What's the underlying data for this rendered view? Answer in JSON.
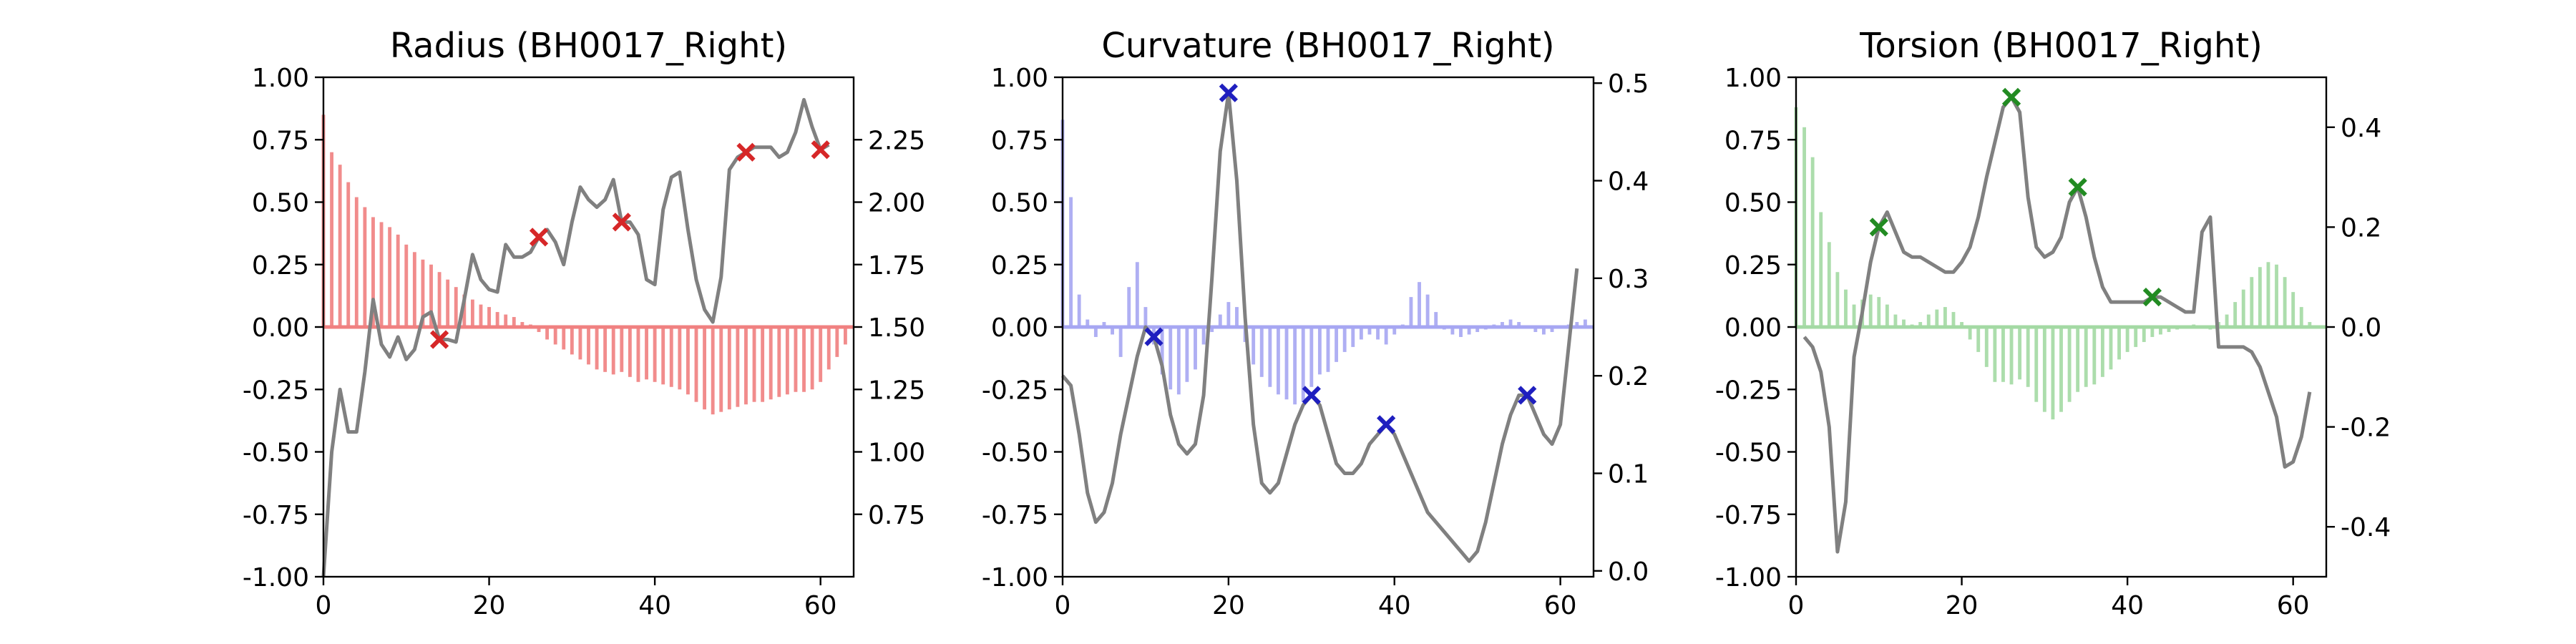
{
  "chart_data": [
    {
      "type": "bar",
      "title": "Radius (BH0017_Right)",
      "xlabel": "",
      "ylabel": "",
      "xlim": [
        0,
        64
      ],
      "ylim": [
        -1.0,
        1.0
      ],
      "y2lim": [
        0.5,
        2.5
      ],
      "x_ticks": [
        0,
        20,
        40,
        60
      ],
      "y_ticks": [
        "1.00",
        "0.75",
        "0.50",
        "0.25",
        "0.00",
        "-0.25",
        "-0.50",
        "-0.75",
        "-1.00"
      ],
      "y2_ticks": [
        "2.25",
        "2.00",
        "1.75",
        "1.50",
        "1.25",
        "1.00",
        "0.75"
      ],
      "bar_color": "#f08080",
      "marker_color": "#d62728",
      "bars": [
        0.85,
        0.7,
        0.65,
        0.58,
        0.52,
        0.48,
        0.44,
        0.42,
        0.4,
        0.37,
        0.33,
        0.3,
        0.27,
        0.25,
        0.22,
        0.19,
        0.16,
        0.13,
        0.11,
        0.09,
        0.08,
        0.06,
        0.05,
        0.04,
        0.02,
        0.01,
        -0.02,
        -0.05,
        -0.07,
        -0.09,
        -0.11,
        -0.13,
        -0.15,
        -0.17,
        -0.18,
        -0.19,
        -0.18,
        -0.2,
        -0.22,
        -0.21,
        -0.22,
        -0.23,
        -0.24,
        -0.25,
        -0.27,
        -0.3,
        -0.33,
        -0.35,
        -0.34,
        -0.33,
        -0.32,
        -0.31,
        -0.3,
        -0.3,
        -0.29,
        -0.28,
        -0.27,
        -0.26,
        -0.26,
        -0.25,
        -0.22,
        -0.17,
        -0.12,
        -0.07
      ],
      "line": [
        0.5,
        1.0,
        1.25,
        1.08,
        1.08,
        1.32,
        1.61,
        1.43,
        1.38,
        1.46,
        1.37,
        1.41,
        1.54,
        1.56,
        1.45,
        1.45,
        1.44,
        1.61,
        1.79,
        1.69,
        1.65,
        1.64,
        1.83,
        1.78,
        1.78,
        1.8,
        1.86,
        1.89,
        1.84,
        1.75,
        1.92,
        2.06,
        2.01,
        1.98,
        2.01,
        2.09,
        1.92,
        1.92,
        1.87,
        1.69,
        1.67,
        1.97,
        2.1,
        2.12,
        1.89,
        1.69,
        1.57,
        1.52,
        1.7,
        2.13,
        2.18,
        2.2,
        2.22,
        2.22,
        2.22,
        2.18,
        2.2,
        2.28,
        2.41,
        2.3,
        2.21,
        2.23
      ],
      "line_start": 0,
      "peaks_x": [
        14,
        26,
        36,
        51,
        60
      ]
    },
    {
      "type": "bar",
      "title": "Curvature (BH0017_Right)",
      "xlabel": "",
      "ylabel": "",
      "xlim": [
        0,
        64
      ],
      "ylim": [
        -1.0,
        1.0
      ],
      "y2lim": [
        -0.006,
        0.506
      ],
      "x_ticks": [
        0,
        20,
        40,
        60
      ],
      "y_ticks": [
        "1.00",
        "0.75",
        "0.50",
        "0.25",
        "0.00",
        "-0.25",
        "-0.50",
        "-0.75",
        "-1.00"
      ],
      "y2_ticks": [
        "0.5",
        "0.4",
        "0.3",
        "0.2",
        "0.1",
        "0.0"
      ],
      "bar_color": "#a6a6f2",
      "marker_color": "#1f1fbf",
      "bars": [
        0.83,
        0.52,
        0.13,
        0.03,
        -0.04,
        0.02,
        -0.03,
        -0.12,
        0.16,
        0.26,
        0.08,
        -0.07,
        -0.19,
        -0.25,
        -0.27,
        -0.22,
        -0.17,
        -0.07,
        -0.02,
        0.05,
        0.1,
        0.08,
        -0.06,
        -0.15,
        -0.2,
        -0.24,
        -0.27,
        -0.29,
        -0.31,
        -0.3,
        -0.24,
        -0.19,
        -0.18,
        -0.14,
        -0.1,
        -0.08,
        -0.05,
        -0.03,
        -0.05,
        -0.07,
        -0.03,
        0.01,
        0.12,
        0.18,
        0.13,
        0.06,
        -0.01,
        -0.03,
        -0.04,
        -0.03,
        -0.02,
        -0.01,
        0.01,
        0.02,
        0.03,
        0.02,
        0.0,
        -0.02,
        -0.03,
        -0.02,
        0.0,
        0.01,
        0.02,
        0.03
      ],
      "line": [
        0.2,
        0.19,
        0.14,
        0.08,
        0.05,
        0.06,
        0.09,
        0.14,
        0.18,
        0.22,
        0.25,
        0.24,
        0.21,
        0.16,
        0.13,
        0.12,
        0.13,
        0.18,
        0.3,
        0.43,
        0.49,
        0.4,
        0.26,
        0.15,
        0.09,
        0.08,
        0.09,
        0.12,
        0.15,
        0.17,
        0.18,
        0.17,
        0.14,
        0.11,
        0.1,
        0.1,
        0.11,
        0.13,
        0.14,
        0.15,
        0.14,
        0.12,
        0.1,
        0.08,
        0.06,
        0.05,
        0.04,
        0.03,
        0.02,
        0.01,
        0.02,
        0.05,
        0.09,
        0.13,
        0.16,
        0.18,
        0.18,
        0.16,
        0.14,
        0.13,
        0.15,
        0.23,
        0.31
      ],
      "line_start": 0,
      "peaks_x": [
        11,
        20,
        30,
        39,
        56
      ]
    },
    {
      "type": "bar",
      "title": "Torsion (BH0017_Right)",
      "xlabel": "",
      "ylabel": "",
      "xlim": [
        0,
        64
      ],
      "ylim": [
        -1.0,
        1.0
      ],
      "y2lim": [
        -0.5,
        0.5
      ],
      "x_ticks": [
        0,
        20,
        40,
        60
      ],
      "y_ticks": [
        "1.00",
        "0.75",
        "0.50",
        "0.25",
        "0.00",
        "-0.25",
        "-0.50",
        "-0.75",
        "-1.00"
      ],
      "y2_ticks": [
        "0.4",
        "0.2",
        "0.0",
        "-0.2",
        "-0.4"
      ],
      "bar_color": "#a3d9a3",
      "marker_color": "#228b22",
      "bars": [
        0.88,
        0.8,
        0.68,
        0.46,
        0.34,
        0.22,
        0.15,
        0.09,
        0.11,
        0.13,
        0.12,
        0.09,
        0.05,
        0.03,
        0.01,
        0.02,
        0.05,
        0.07,
        0.08,
        0.06,
        0.02,
        -0.05,
        -0.1,
        -0.16,
        -0.22,
        -0.22,
        -0.23,
        -0.21,
        -0.24,
        -0.3,
        -0.34,
        -0.37,
        -0.34,
        -0.3,
        -0.26,
        -0.24,
        -0.23,
        -0.2,
        -0.17,
        -0.13,
        -0.1,
        -0.08,
        -0.06,
        -0.04,
        -0.03,
        -0.02,
        -0.01,
        0.0,
        0.01,
        0.0,
        -0.01,
        0.02,
        0.05,
        0.1,
        0.15,
        0.2,
        0.24,
        0.26,
        0.25,
        0.2,
        0.14,
        0.08,
        0.02,
        0.0
      ],
      "line": [
        -0.02,
        -0.04,
        -0.09,
        -0.2,
        -0.45,
        -0.35,
        -0.06,
        0.03,
        0.13,
        0.2,
        0.23,
        0.19,
        0.15,
        0.14,
        0.14,
        0.13,
        0.12,
        0.11,
        0.11,
        0.13,
        0.16,
        0.22,
        0.3,
        0.37,
        0.44,
        0.46,
        0.43,
        0.26,
        0.16,
        0.14,
        0.15,
        0.18,
        0.25,
        0.28,
        0.22,
        0.14,
        0.08,
        0.05,
        0.05,
        0.05,
        0.05,
        0.05,
        0.06,
        0.06,
        0.05,
        0.04,
        0.03,
        0.03,
        0.19,
        0.22,
        -0.04,
        -0.04,
        -0.04,
        -0.04,
        -0.05,
        -0.08,
        -0.13,
        -0.18,
        -0.28,
        -0.27,
        -0.22,
        -0.13
      ],
      "line_start": 1,
      "peaks_x": [
        10,
        26,
        34,
        43
      ]
    }
  ]
}
